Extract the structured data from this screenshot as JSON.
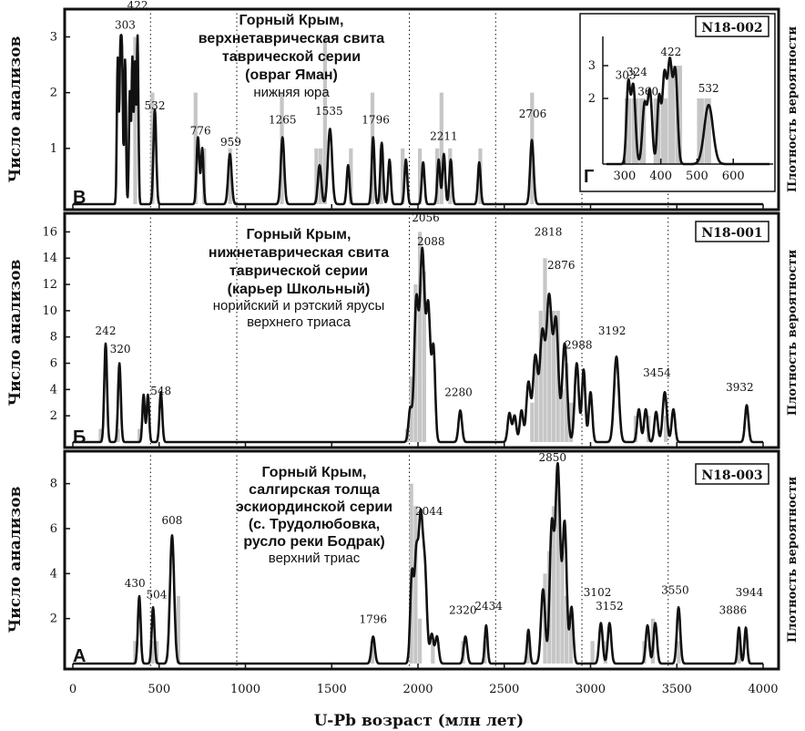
{
  "x_axis": {
    "label": "U-Pb возраст (млн лет)",
    "ticks": [
      0,
      500,
      1000,
      1500,
      2000,
      2500,
      3000,
      3500,
      4000
    ],
    "range": [
      0,
      4000
    ],
    "dotted_lines": [
      450,
      950,
      1950,
      2450,
      2950,
      3450
    ]
  },
  "left_axis_label": "Число анализов",
  "right_axis_label": "Плотность вероятности",
  "chart_data": [
    {
      "type": "histogram+probability-density",
      "panel": "В",
      "sample": "N18-002",
      "title_lines": [
        "Горный Крым,",
        "верхнетаврическая свита",
        "таврической серии",
        "(овраг Яман)"
      ],
      "subtitle_lines": [
        "нижняя юра"
      ],
      "ylim": [
        0,
        3.4
      ],
      "yticks": [
        1,
        2,
        3
      ],
      "bins": [
        [
          350,
          375,
          3
        ],
        [
          450,
          475,
          2
        ],
        [
          700,
          725,
          2
        ],
        [
          750,
          775,
          1
        ],
        [
          900,
          925,
          1
        ],
        [
          1200,
          1225,
          2
        ],
        [
          1400,
          1425,
          1
        ],
        [
          1425,
          1450,
          1
        ],
        [
          1450,
          1475,
          3
        ],
        [
          1600,
          1625,
          1
        ],
        [
          1725,
          1750,
          2
        ],
        [
          1775,
          1800,
          1
        ],
        [
          1900,
          1925,
          1
        ],
        [
          2000,
          2025,
          1
        ],
        [
          2100,
          2125,
          1
        ],
        [
          2125,
          2150,
          2
        ],
        [
          2175,
          2200,
          1
        ],
        [
          2350,
          2375,
          1
        ],
        [
          2650,
          2675,
          2
        ]
      ],
      "peaks": [
        [
          260,
          2.6,
          5
        ],
        [
          275,
          2.5,
          5
        ],
        [
          285,
          2.5,
          5
        ],
        [
          303,
          2.6,
          5
        ],
        [
          330,
          2.0,
          5
        ],
        [
          345,
          2.6,
          5
        ],
        [
          360,
          2.5,
          5
        ],
        [
          375,
          3.0,
          5
        ],
        [
          475,
          1.7,
          8
        ],
        [
          725,
          1.2,
          8
        ],
        [
          750,
          1.0,
          7
        ],
        [
          910,
          0.9,
          10
        ],
        [
          1215,
          1.2,
          10
        ],
        [
          1430,
          0.7,
          10
        ],
        [
          1490,
          1.35,
          12
        ],
        [
          1595,
          0.7,
          8
        ],
        [
          1740,
          1.2,
          8
        ],
        [
          1790,
          1.1,
          8
        ],
        [
          1835,
          0.8,
          8
        ],
        [
          1930,
          0.8,
          8
        ],
        [
          2030,
          0.75,
          8
        ],
        [
          2120,
          0.8,
          8
        ],
        [
          2150,
          0.9,
          8
        ],
        [
          2190,
          0.8,
          8
        ],
        [
          2355,
          0.75,
          8
        ],
        [
          2660,
          1.15,
          10
        ]
      ],
      "labels": [
        [
          "303",
          303,
          3.15
        ],
        [
          "422",
          375,
          3.5
        ],
        [
          "532",
          475,
          1.7
        ],
        [
          "776",
          740,
          1.25
        ],
        [
          "959",
          915,
          1.05
        ],
        [
          "1265",
          1215,
          1.45
        ],
        [
          "1535",
          1485,
          1.6
        ],
        [
          "1796",
          1755,
          1.45
        ],
        [
          "2211",
          2150,
          1.15
        ],
        [
          "2706",
          2665,
          1.55
        ]
      ]
    },
    {
      "type": "histogram+probability-density",
      "panel": "Г",
      "sample": "N18-002",
      "xlim": [
        250,
        700
      ],
      "xticks": [
        300,
        400,
        500,
        600
      ],
      "ylim": [
        0,
        3.5
      ],
      "yticks": [
        2,
        3
      ],
      "bins": [
        [
          300,
          320,
          2
        ],
        [
          320,
          340,
          2
        ],
        [
          340,
          360,
          2
        ],
        [
          380,
          400,
          2
        ],
        [
          400,
          420,
          2
        ],
        [
          420,
          440,
          3
        ],
        [
          440,
          460,
          3
        ],
        [
          500,
          520,
          2
        ],
        [
          520,
          540,
          2
        ]
      ],
      "peaks": [
        [
          310,
          2.4,
          5
        ],
        [
          324,
          2.4,
          6
        ],
        [
          355,
          1.8,
          6
        ],
        [
          370,
          2.2,
          6
        ],
        [
          395,
          2.0,
          5
        ],
        [
          410,
          2.7,
          6
        ],
        [
          425,
          3.0,
          6
        ],
        [
          440,
          2.8,
          6
        ],
        [
          532,
          1.8,
          12
        ]
      ],
      "labels": [
        [
          "303",
          303,
          2.6
        ],
        [
          "324",
          334,
          2.7
        ],
        [
          "360",
          365,
          2.1
        ],
        [
          "422",
          428,
          3.3
        ],
        [
          "532",
          532,
          2.2
        ]
      ]
    },
    {
      "type": "histogram+probability-density",
      "panel": "Б",
      "sample": "N18-001",
      "title_lines": [
        "Горный Крым,",
        "нижнетаврическая свита",
        "таврической серии",
        "(карьер Школьный)"
      ],
      "subtitle_lines": [
        "норийский и рэтский ярусы",
        "верхнего триаса"
      ],
      "ylim": [
        0,
        17
      ],
      "yticks": [
        2,
        4,
        6,
        8,
        10,
        12,
        14,
        16
      ],
      "bins": [
        [
          150,
          175,
          1
        ],
        [
          250,
          275,
          1
        ],
        [
          375,
          400,
          1
        ],
        [
          1925,
          1950,
          1
        ],
        [
          1950,
          1975,
          5
        ],
        [
          1975,
          2000,
          12
        ],
        [
          2000,
          2025,
          16
        ],
        [
          2025,
          2050,
          13
        ],
        [
          2650,
          2675,
          3
        ],
        [
          2675,
          2700,
          6
        ],
        [
          2700,
          2725,
          10
        ],
        [
          2725,
          2750,
          14
        ],
        [
          2750,
          2775,
          10
        ],
        [
          2775,
          2800,
          10
        ],
        [
          2800,
          2825,
          10
        ],
        [
          2825,
          2850,
          4
        ],
        [
          2850,
          2875,
          6
        ],
        [
          2875,
          2900,
          3
        ],
        [
          3250,
          3275,
          2
        ],
        [
          3325,
          3350,
          2
        ],
        [
          3425,
          3450,
          2
        ]
      ],
      "peaks": [
        [
          190,
          7.5,
          8
        ],
        [
          270,
          6.0,
          8
        ],
        [
          410,
          3.6,
          7
        ],
        [
          435,
          3.6,
          7
        ],
        [
          510,
          3.8,
          8
        ],
        [
          1955,
          2.5,
          10
        ],
        [
          1990,
          10.5,
          12
        ],
        [
          2025,
          14.5,
          14
        ],
        [
          2060,
          10.0,
          12
        ],
        [
          2090,
          7.0,
          10
        ],
        [
          2245,
          2.4,
          10
        ],
        [
          2530,
          2.2,
          10
        ],
        [
          2560,
          2.0,
          10
        ],
        [
          2600,
          2.4,
          10
        ],
        [
          2640,
          4.5,
          12
        ],
        [
          2680,
          6.5,
          14
        ],
        [
          2720,
          8.0,
          14
        ],
        [
          2760,
          11.0,
          16
        ],
        [
          2800,
          9.0,
          14
        ],
        [
          2850,
          7.5,
          14
        ],
        [
          2920,
          6.0,
          12
        ],
        [
          2960,
          5.5,
          10
        ],
        [
          3000,
          3.8,
          10
        ],
        [
          3150,
          6.5,
          14
        ],
        [
          3280,
          2.5,
          10
        ],
        [
          3320,
          2.5,
          10
        ],
        [
          3380,
          2.3,
          10
        ],
        [
          3430,
          3.8,
          12
        ],
        [
          3480,
          2.5,
          10
        ],
        [
          3905,
          2.8,
          10
        ]
      ],
      "labels": [
        [
          "242",
          190,
          8.2
        ],
        [
          "320",
          275,
          6.8
        ],
        [
          "548",
          510,
          3.6
        ],
        [
          "2056",
          2045,
          16.8
        ],
        [
          "2088",
          2075,
          15.0
        ],
        [
          "2280",
          2235,
          3.5
        ],
        [
          "2818",
          2755,
          15.7
        ],
        [
          "2876",
          2830,
          13.2
        ],
        [
          "2988",
          2930,
          7.1
        ],
        [
          "3192",
          3125,
          8.2
        ],
        [
          "3454",
          3385,
          5.0
        ],
        [
          "3932",
          3865,
          3.9
        ]
      ]
    },
    {
      "type": "histogram+probability-density",
      "panel": "А",
      "sample": "N18-003",
      "title_lines": [
        "Горный Крым,",
        "салгирская толща",
        "эскиординской серии",
        "(с. Трудолюбовка,",
        "русло реки Бодрак)"
      ],
      "subtitle_lines": [
        "верхний триас"
      ],
      "ylim": [
        0,
        9.2
      ],
      "yticks": [
        2,
        4,
        6,
        8
      ],
      "bins": [
        [
          350,
          375,
          1
        ],
        [
          450,
          475,
          1
        ],
        [
          475,
          500,
          1
        ],
        [
          600,
          625,
          3
        ],
        [
          1725,
          1750,
          1
        ],
        [
          1950,
          1975,
          8
        ],
        [
          1975,
          2000,
          7
        ],
        [
          2000,
          2025,
          2
        ],
        [
          2075,
          2100,
          1
        ],
        [
          2250,
          2275,
          1
        ],
        [
          2375,
          2400,
          1
        ],
        [
          2625,
          2650,
          1
        ],
        [
          2725,
          2750,
          4
        ],
        [
          2750,
          2775,
          5
        ],
        [
          2775,
          2800,
          7
        ],
        [
          2800,
          2825,
          8
        ],
        [
          2825,
          2850,
          5
        ],
        [
          2850,
          2875,
          3
        ],
        [
          2875,
          2900,
          2
        ],
        [
          3000,
          3025,
          1
        ],
        [
          3075,
          3100,
          1
        ],
        [
          3300,
          3325,
          1
        ],
        [
          3350,
          3375,
          2
        ],
        [
          3500,
          3525,
          1
        ],
        [
          3850,
          3875,
          1
        ]
      ],
      "peaks": [
        [
          385,
          3.0,
          8
        ],
        [
          465,
          2.5,
          8
        ],
        [
          575,
          5.7,
          12
        ],
        [
          1740,
          1.2,
          10
        ],
        [
          1965,
          4.0,
          10
        ],
        [
          1990,
          4.4,
          10
        ],
        [
          2015,
          6.2,
          12
        ],
        [
          2040,
          4.0,
          12
        ],
        [
          2080,
          1.3,
          10
        ],
        [
          2110,
          1.2,
          10
        ],
        [
          2275,
          1.2,
          10
        ],
        [
          2395,
          1.7,
          8
        ],
        [
          2640,
          1.5,
          8
        ],
        [
          2725,
          3.3,
          12
        ],
        [
          2775,
          6.0,
          12
        ],
        [
          2810,
          8.8,
          14
        ],
        [
          2850,
          6.2,
          12
        ],
        [
          2890,
          2.5,
          10
        ],
        [
          3060,
          1.8,
          10
        ],
        [
          3110,
          1.8,
          10
        ],
        [
          3330,
          1.7,
          10
        ],
        [
          3375,
          1.8,
          10
        ],
        [
          3510,
          2.5,
          10
        ],
        [
          3860,
          1.6,
          8
        ],
        [
          3900,
          1.6,
          8
        ]
      ],
      "labels": [
        [
          "430",
          360,
          3.4
        ],
        [
          "504",
          485,
          2.9
        ],
        [
          "608",
          575,
          6.2
        ],
        [
          "1796",
          1740,
          1.8
        ],
        [
          "2044",
          2065,
          6.6
        ],
        [
          "2320",
          2260,
          2.2
        ],
        [
          "2434",
          2410,
          2.4
        ],
        [
          "2850",
          2780,
          9.0
        ],
        [
          "3102",
          3040,
          3.0
        ],
        [
          "3152",
          3110,
          2.4
        ],
        [
          "3550",
          3490,
          3.1
        ],
        [
          "3886",
          3825,
          2.2
        ],
        [
          "3944",
          3920,
          3.0
        ]
      ]
    }
  ]
}
